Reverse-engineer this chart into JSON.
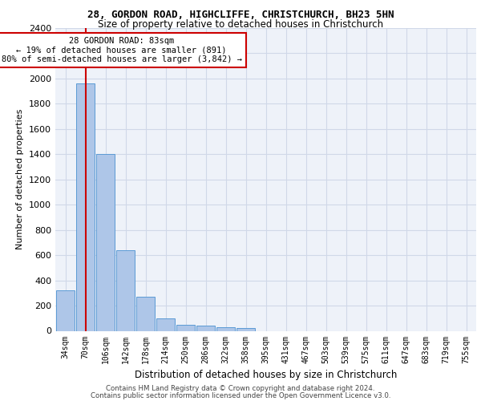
{
  "title_line1": "28, GORDON ROAD, HIGHCLIFFE, CHRISTCHURCH, BH23 5HN",
  "title_line2": "Size of property relative to detached houses in Christchurch",
  "xlabel": "Distribution of detached houses by size in Christchurch",
  "ylabel": "Number of detached properties",
  "footer_line1": "Contains HM Land Registry data © Crown copyright and database right 2024.",
  "footer_line2": "Contains public sector information licensed under the Open Government Licence v3.0.",
  "bar_labels": [
    "34sqm",
    "70sqm",
    "106sqm",
    "142sqm",
    "178sqm",
    "214sqm",
    "250sqm",
    "286sqm",
    "322sqm",
    "358sqm",
    "395sqm",
    "431sqm",
    "467sqm",
    "503sqm",
    "539sqm",
    "575sqm",
    "611sqm",
    "647sqm",
    "683sqm",
    "719sqm",
    "755sqm"
  ],
  "bar_values": [
    320,
    1960,
    1400,
    640,
    270,
    100,
    50,
    40,
    30,
    20,
    0,
    0,
    0,
    0,
    0,
    0,
    0,
    0,
    0,
    0,
    0
  ],
  "bar_color": "#aec6e8",
  "bar_edge_color": "#5b9bd5",
  "grid_color": "#d0d8e8",
  "background_color": "#eef2f9",
  "vline_color": "#cc0000",
  "annotation_text": "28 GORDON ROAD: 83sqm\n← 19% of detached houses are smaller (891)\n80% of semi-detached houses are larger (3,842) →",
  "annotation_box_color": "#ffffff",
  "annotation_box_edge": "#cc0000",
  "annotation_fontsize": 7.5,
  "ylim": [
    0,
    2400
  ],
  "yticks": [
    0,
    200,
    400,
    600,
    800,
    1000,
    1200,
    1400,
    1600,
    1800,
    2000,
    2200,
    2400
  ],
  "title1_fontsize": 9.0,
  "title2_fontsize": 8.5,
  "ylabel_fontsize": 8.0,
  "xlabel_fontsize": 8.5,
  "footer_fontsize": 6.2
}
